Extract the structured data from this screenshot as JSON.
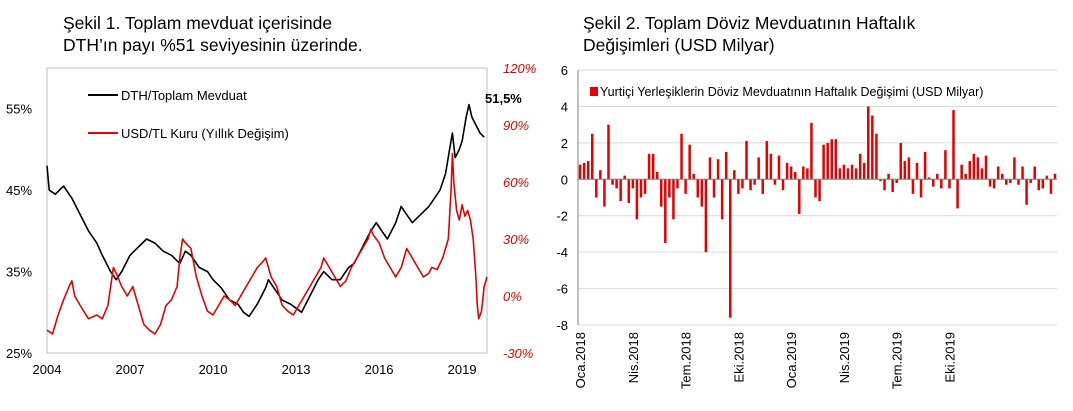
{
  "chart_data": [
    {
      "type": "line",
      "title_line1": "Şekil 1. Toplam mevduat içerisinde",
      "title_line2": "DTH’ın payı %51 seviyesinin üzerinde.",
      "x_ticks": [
        "2004",
        "2007",
        "2010",
        "2013",
        "2016",
        "2019"
      ],
      "y_left_ticks": [
        "25%",
        "35%",
        "45%",
        "55%"
      ],
      "y_right_ticks": [
        "-30%",
        "0%",
        "30%",
        "60%",
        "90%",
        "120%"
      ],
      "ylim_left": [
        25,
        60
      ],
      "ylim_right": [
        -30,
        120
      ],
      "xlim": [
        2004,
        2019.9
      ],
      "annotation": "51,5%",
      "colors": {
        "dth": "#000000",
        "usd": "#e60000"
      },
      "series": [
        {
          "name": "DTH/Toplam Mevduat",
          "axis": "left",
          "points": [
            [
              2004.0,
              48
            ],
            [
              2004.08,
              45
            ],
            [
              2004.3,
              44.5
            ],
            [
              2004.6,
              45.5
            ],
            [
              2004.9,
              44
            ],
            [
              2005.2,
              42
            ],
            [
              2005.5,
              40
            ],
            [
              2005.8,
              38.5
            ],
            [
              2006.0,
              37
            ],
            [
              2006.3,
              35
            ],
            [
              2006.5,
              34
            ],
            [
              2006.7,
              35
            ],
            [
              2007.0,
              37
            ],
            [
              2007.3,
              38
            ],
            [
              2007.6,
              39
            ],
            [
              2007.9,
              38.5
            ],
            [
              2008.2,
              37.5
            ],
            [
              2008.5,
              37
            ],
            [
              2008.8,
              36
            ],
            [
              2009.0,
              37.5
            ],
            [
              2009.2,
              37
            ],
            [
              2009.5,
              35.5
            ],
            [
              2009.8,
              35
            ],
            [
              2010.0,
              34
            ],
            [
              2010.3,
              33
            ],
            [
              2010.6,
              31.5
            ],
            [
              2010.9,
              31
            ],
            [
              2011.1,
              30
            ],
            [
              2011.3,
              29.5
            ],
            [
              2011.6,
              31
            ],
            [
              2011.9,
              33
            ],
            [
              2012.0,
              34
            ],
            [
              2012.2,
              33
            ],
            [
              2012.5,
              31.5
            ],
            [
              2012.8,
              31
            ],
            [
              2013.0,
              30.5
            ],
            [
              2013.2,
              30
            ],
            [
              2013.5,
              32
            ],
            [
              2013.8,
              34
            ],
            [
              2014.0,
              35
            ],
            [
              2014.3,
              34
            ],
            [
              2014.6,
              34
            ],
            [
              2014.9,
              35.5
            ],
            [
              2015.1,
              36
            ],
            [
              2015.4,
              38
            ],
            [
              2015.7,
              40
            ],
            [
              2015.9,
              41
            ],
            [
              2016.1,
              40
            ],
            [
              2016.3,
              39
            ],
            [
              2016.6,
              41
            ],
            [
              2016.8,
              43
            ],
            [
              2017.0,
              42
            ],
            [
              2017.2,
              41
            ],
            [
              2017.5,
              42
            ],
            [
              2017.8,
              43
            ],
            [
              2018.0,
              44
            ],
            [
              2018.2,
              45
            ],
            [
              2018.4,
              47
            ],
            [
              2018.55,
              50
            ],
            [
              2018.65,
              52
            ],
            [
              2018.75,
              49
            ],
            [
              2018.9,
              50
            ],
            [
              2019.0,
              51
            ],
            [
              2019.15,
              54
            ],
            [
              2019.25,
              55.5
            ],
            [
              2019.35,
              54
            ],
            [
              2019.5,
              53
            ],
            [
              2019.65,
              52
            ],
            [
              2019.8,
              51.5
            ]
          ]
        },
        {
          "name": "USD/TL Kuru (Yıllık Değişim)",
          "axis": "right",
          "points": [
            [
              2004.0,
              -18
            ],
            [
              2004.2,
              -20
            ],
            [
              2004.4,
              -10
            ],
            [
              2004.6,
              -2
            ],
            [
              2004.8,
              5
            ],
            [
              2004.9,
              8
            ],
            [
              2005.0,
              0
            ],
            [
              2005.2,
              -5
            ],
            [
              2005.5,
              -12
            ],
            [
              2005.8,
              -10
            ],
            [
              2006.0,
              -12
            ],
            [
              2006.2,
              -5
            ],
            [
              2006.4,
              15
            ],
            [
              2006.5,
              12
            ],
            [
              2006.7,
              5
            ],
            [
              2006.9,
              0
            ],
            [
              2007.1,
              5
            ],
            [
              2007.3,
              -5
            ],
            [
              2007.5,
              -15
            ],
            [
              2007.7,
              -18
            ],
            [
              2007.9,
              -20
            ],
            [
              2008.1,
              -15
            ],
            [
              2008.3,
              -5
            ],
            [
              2008.5,
              -2
            ],
            [
              2008.7,
              5
            ],
            [
              2008.8,
              20
            ],
            [
              2008.9,
              30
            ],
            [
              2009.0,
              28
            ],
            [
              2009.2,
              25
            ],
            [
              2009.4,
              10
            ],
            [
              2009.6,
              0
            ],
            [
              2009.8,
              -8
            ],
            [
              2010.0,
              -10
            ],
            [
              2010.2,
              -5
            ],
            [
              2010.4,
              0
            ],
            [
              2010.6,
              -2
            ],
            [
              2010.8,
              -5
            ],
            [
              2011.0,
              0
            ],
            [
              2011.2,
              5
            ],
            [
              2011.4,
              10
            ],
            [
              2011.6,
              15
            ],
            [
              2011.8,
              18
            ],
            [
              2011.9,
              20
            ],
            [
              2012.1,
              10
            ],
            [
              2012.3,
              5
            ],
            [
              2012.5,
              -5
            ],
            [
              2012.7,
              -8
            ],
            [
              2012.9,
              -10
            ],
            [
              2013.1,
              -5
            ],
            [
              2013.3,
              0
            ],
            [
              2013.5,
              5
            ],
            [
              2013.7,
              10
            ],
            [
              2013.9,
              15
            ],
            [
              2014.0,
              20
            ],
            [
              2014.2,
              15
            ],
            [
              2014.4,
              10
            ],
            [
              2014.6,
              5
            ],
            [
              2014.8,
              8
            ],
            [
              2015.0,
              15
            ],
            [
              2015.2,
              20
            ],
            [
              2015.4,
              25
            ],
            [
              2015.6,
              30
            ],
            [
              2015.7,
              35
            ],
            [
              2015.8,
              32
            ],
            [
              2016.0,
              28
            ],
            [
              2016.2,
              20
            ],
            [
              2016.4,
              15
            ],
            [
              2016.6,
              10
            ],
            [
              2016.8,
              15
            ],
            [
              2016.9,
              20
            ],
            [
              2017.0,
              25
            ],
            [
              2017.2,
              20
            ],
            [
              2017.4,
              15
            ],
            [
              2017.6,
              10
            ],
            [
              2017.8,
              12
            ],
            [
              2017.9,
              15
            ],
            [
              2018.1,
              14
            ],
            [
              2018.3,
              20
            ],
            [
              2018.5,
              30
            ],
            [
              2018.6,
              55
            ],
            [
              2018.65,
              75
            ],
            [
              2018.7,
              60
            ],
            [
              2018.8,
              45
            ],
            [
              2018.9,
              40
            ],
            [
              2019.0,
              48
            ],
            [
              2019.1,
              42
            ],
            [
              2019.2,
              45
            ],
            [
              2019.3,
              40
            ],
            [
              2019.4,
              30
            ],
            [
              2019.5,
              10
            ],
            [
              2019.55,
              -5
            ],
            [
              2019.6,
              -12
            ],
            [
              2019.7,
              -8
            ],
            [
              2019.8,
              5
            ],
            [
              2019.9,
              10
            ]
          ]
        }
      ]
    },
    {
      "type": "bar",
      "title_line1": "Şekil 2. Toplam Döviz Mevduatının Haftalık",
      "title_line2": "Değişimleri (USD Milyar)",
      "legend": "Yurtiçi Yerleşiklerin Döviz Mevduatının Haftalık Değişimi (USD Milyar)",
      "y_ticks": [
        "-8",
        "-6",
        "-4",
        "-2",
        "0",
        "2",
        "4",
        "6"
      ],
      "ylim": [
        -8,
        6
      ],
      "x_ticks": [
        {
          "label": "Oca.2018",
          "index": 0
        },
        {
          "label": "Nis.2018",
          "index": 13
        },
        {
          "label": "Tem.2018",
          "index": 26
        },
        {
          "label": "Eki.2018",
          "index": 39
        },
        {
          "label": "Oca.2019",
          "index": 52
        },
        {
          "label": "Nis.2019",
          "index": 65
        },
        {
          "label": "Tem.2019",
          "index": 78
        },
        {
          "label": "Eki.2019",
          "index": 91
        }
      ],
      "color": "#e60000",
      "values": [
        0.8,
        0.9,
        1.0,
        2.5,
        -1.0,
        0.5,
        -1.5,
        3.0,
        -0.3,
        -0.5,
        -1.2,
        0.2,
        -1.3,
        -0.5,
        -2.2,
        -1.0,
        -0.8,
        1.4,
        1.4,
        0.4,
        -1.5,
        -3.5,
        -1.0,
        -2.2,
        -0.5,
        2.5,
        -0.8,
        1.9,
        0.3,
        -1.0,
        -1.5,
        -4.0,
        1.2,
        -1.0,
        1.1,
        -2.2,
        1.5,
        -7.6,
        0.5,
        -0.8,
        -0.5,
        2.1,
        -0.6,
        -0.3,
        1.2,
        -0.8,
        2.1,
        1.4,
        -0.3,
        1.3,
        -0.6,
        0.9,
        0.7,
        0.4,
        -1.9,
        0.7,
        0.6,
        3.1,
        -1.0,
        -1.2,
        1.9,
        2.0,
        2.2,
        2.2,
        0.6,
        0.8,
        0.6,
        0.8,
        0.6,
        1.4,
        0.9,
        4.0,
        3.5,
        2.5,
        -0.1,
        -0.6,
        0.3,
        -0.7,
        -0.2,
        2.0,
        1.0,
        1.2,
        -0.8,
        0.9,
        -1.0,
        1.5,
        0.1,
        -0.4,
        0.3,
        -0.5,
        1.6,
        -0.5,
        3.8,
        -1.6,
        0.8,
        0.3,
        1.0,
        1.4,
        1.2,
        0.6,
        1.3,
        -0.4,
        -0.5,
        0.7,
        0.3,
        -0.3,
        -0.2,
        1.2,
        -0.3,
        0.7,
        -1.4,
        -0.2,
        0.7,
        -0.6,
        -0.5,
        0.2,
        -0.8,
        0.3
      ]
    }
  ]
}
